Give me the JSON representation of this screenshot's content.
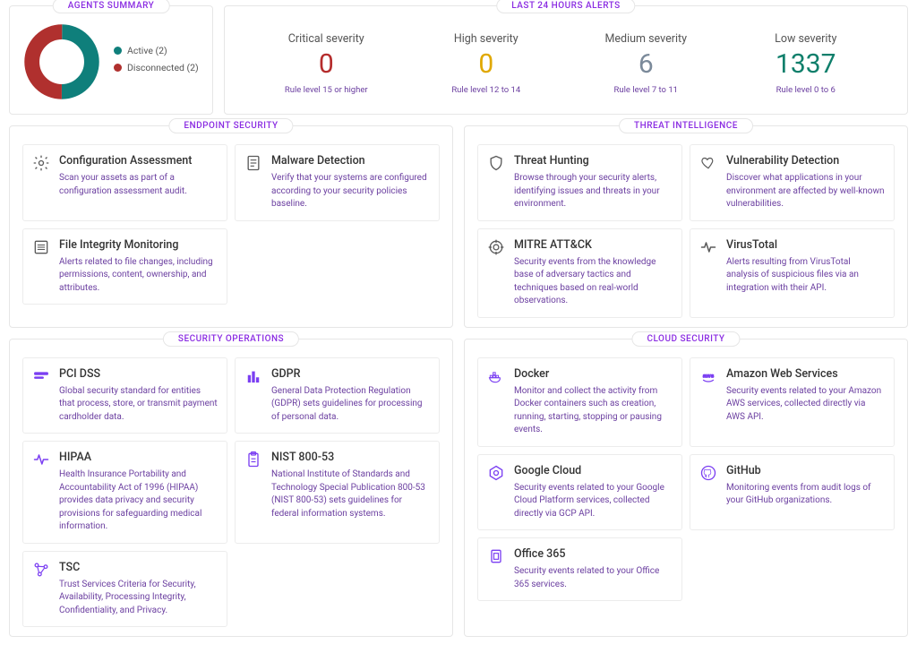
{
  "agents_summary": {
    "title": "AGENTS SUMMARY",
    "donut": {
      "segments": [
        {
          "label": "Active (2)",
          "value": 2,
          "color": "#0f7f7b"
        },
        {
          "label": "Disconnected (2)",
          "value": 2,
          "color": "#b0302e"
        }
      ],
      "thickness": 16,
      "size": 88
    }
  },
  "alerts": {
    "title": "LAST 24 HOURS ALERTS",
    "columns": [
      {
        "label": "Critical severity",
        "value": "0",
        "color": "#b52d2d",
        "sub": "Rule level 15 or higher"
      },
      {
        "label": "High severity",
        "value": "0",
        "color": "#e0a800",
        "sub": "Rule level 12 to 14"
      },
      {
        "label": "Medium severity",
        "value": "6",
        "color": "#7b8a9a",
        "sub": "Rule level 7 to 11"
      },
      {
        "label": "Low severity",
        "value": "1337",
        "color": "#0f7f6b",
        "sub": "Rule level 0 to 6"
      }
    ]
  },
  "sections": [
    {
      "title": "ENDPOINT SECURITY",
      "icon_color": "gray",
      "cards": [
        {
          "icon": "gear",
          "title": "Configuration Assessment",
          "desc": "Scan your assets as part of a configuration assessment audit."
        },
        {
          "icon": "document",
          "title": "Malware Detection",
          "desc": "Verify that your systems are configured according to your security policies baseline."
        },
        {
          "icon": "list",
          "title": "File Integrity Monitoring",
          "desc": "Alerts related to file changes, including permissions, content, ownership, and attributes."
        }
      ]
    },
    {
      "title": "THREAT INTELLIGENCE",
      "icon_color": "gray",
      "cards": [
        {
          "icon": "shield",
          "title": "Threat Hunting",
          "desc": "Browse through your security alerts, identifying issues and threats in your environment."
        },
        {
          "icon": "heart",
          "title": "Vulnerability Detection",
          "desc": "Discover what applications in your environment are affected by well-known vulnerabilities."
        },
        {
          "icon": "target",
          "title": "MITRE ATT&CK",
          "desc": "Security events from the knowledge base of adversary tactics and techniques based on real-world observations."
        },
        {
          "icon": "pulse",
          "title": "VirusTotal",
          "desc": "Alerts resulting from VirusTotal analysis of suspicious files via an integration with their API."
        }
      ]
    },
    {
      "title": "SECURITY OPERATIONS",
      "icon_color": "purple",
      "cards": [
        {
          "icon": "card",
          "title": "PCI DSS",
          "desc": "Global security standard for entities that process, store, or transmit payment cardholder data."
        },
        {
          "icon": "bars",
          "title": "GDPR",
          "desc": "General Data Protection Regulation (GDPR) sets guidelines for processing of personal data."
        },
        {
          "icon": "pulse",
          "title": "HIPAA",
          "desc": "Health Insurance Portability and Accountability Act of 1996 (HIPAA) provides data privacy and security provisions for safeguarding medical information."
        },
        {
          "icon": "clipboard",
          "title": "NIST 800-53",
          "desc": "National Institute of Standards and Technology Special Publication 800-53 (NIST 800-53) sets guidelines for federal information systems."
        },
        {
          "icon": "nodes",
          "title": "TSC",
          "desc": "Trust Services Criteria for Security, Availability, Processing Integrity, Confidentiality, and Privacy."
        }
      ]
    },
    {
      "title": "CLOUD SECURITY",
      "icon_color": "purple",
      "cards": [
        {
          "icon": "docker",
          "title": "Docker",
          "desc": "Monitor and collect the activity from Docker containers such as creation, running, starting, stopping or pausing events."
        },
        {
          "icon": "aws",
          "title": "Amazon Web Services",
          "desc": "Security events related to your Amazon AWS services, collected directly via AWS API."
        },
        {
          "icon": "hex",
          "title": "Google Cloud",
          "desc": "Security events related to your Google Cloud Platform services, collected directly via GCP API."
        },
        {
          "icon": "github",
          "title": "GitHub",
          "desc": "Monitoring events from audit logs of your GitHub organizations."
        },
        {
          "icon": "office",
          "title": "Office 365",
          "desc": "Security events related to your Office 365 services."
        }
      ]
    }
  ],
  "colors": {
    "panel_border": "#e6e6e6",
    "accent": "#8a2be2",
    "desc_link": "#6b3fa0"
  }
}
